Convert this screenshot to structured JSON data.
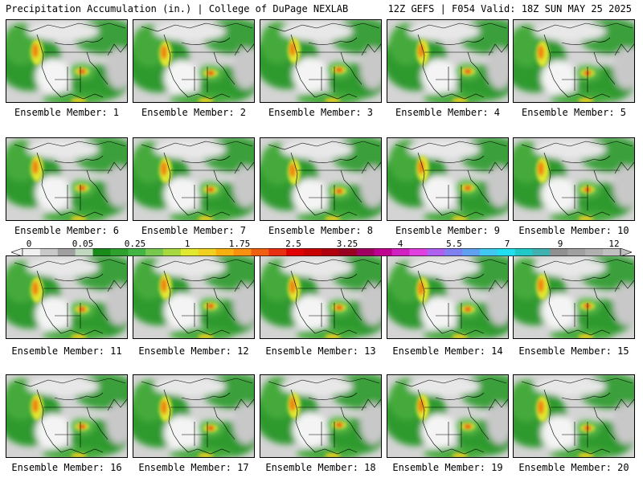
{
  "header": {
    "left": "Precipitation Accumulation (in.) | College of DuPage NEXLAB",
    "right": "12Z GEFS | F054 Valid: 18Z SUN MAY 25 2025"
  },
  "panel_prefix": "Ensemble Member: ",
  "members": [
    1,
    2,
    3,
    4,
    5,
    6,
    7,
    8,
    9,
    10,
    11,
    12,
    13,
    14,
    15,
    16,
    17,
    18,
    19,
    20
  ],
  "scale": {
    "ticks": [
      "0",
      "0.05",
      "0.25",
      "1",
      "1.75",
      "2.5",
      "3.25",
      "4",
      "5.5",
      "7",
      "9",
      "12"
    ],
    "colors": [
      "#f0f0f0",
      "#c8c8c8",
      "#a0a0a0",
      "#c0d8c0",
      "#1a8a1a",
      "#2ea02e",
      "#44b444",
      "#78c850",
      "#a8d840",
      "#e0e830",
      "#f0d020",
      "#f8b010",
      "#f89010",
      "#f06010",
      "#e83010",
      "#e00000",
      "#c80000",
      "#b00010",
      "#980020",
      "#a00060",
      "#c00090",
      "#d020c0",
      "#e040e0",
      "#b060f0",
      "#8080f0",
      "#60a0f0",
      "#40c8f0",
      "#20e0f0",
      "#20c8c8",
      "#40b0b0",
      "#909090",
      "#a0a0a0",
      "#b0b0b0",
      "#c0c0c0"
    ]
  }
}
